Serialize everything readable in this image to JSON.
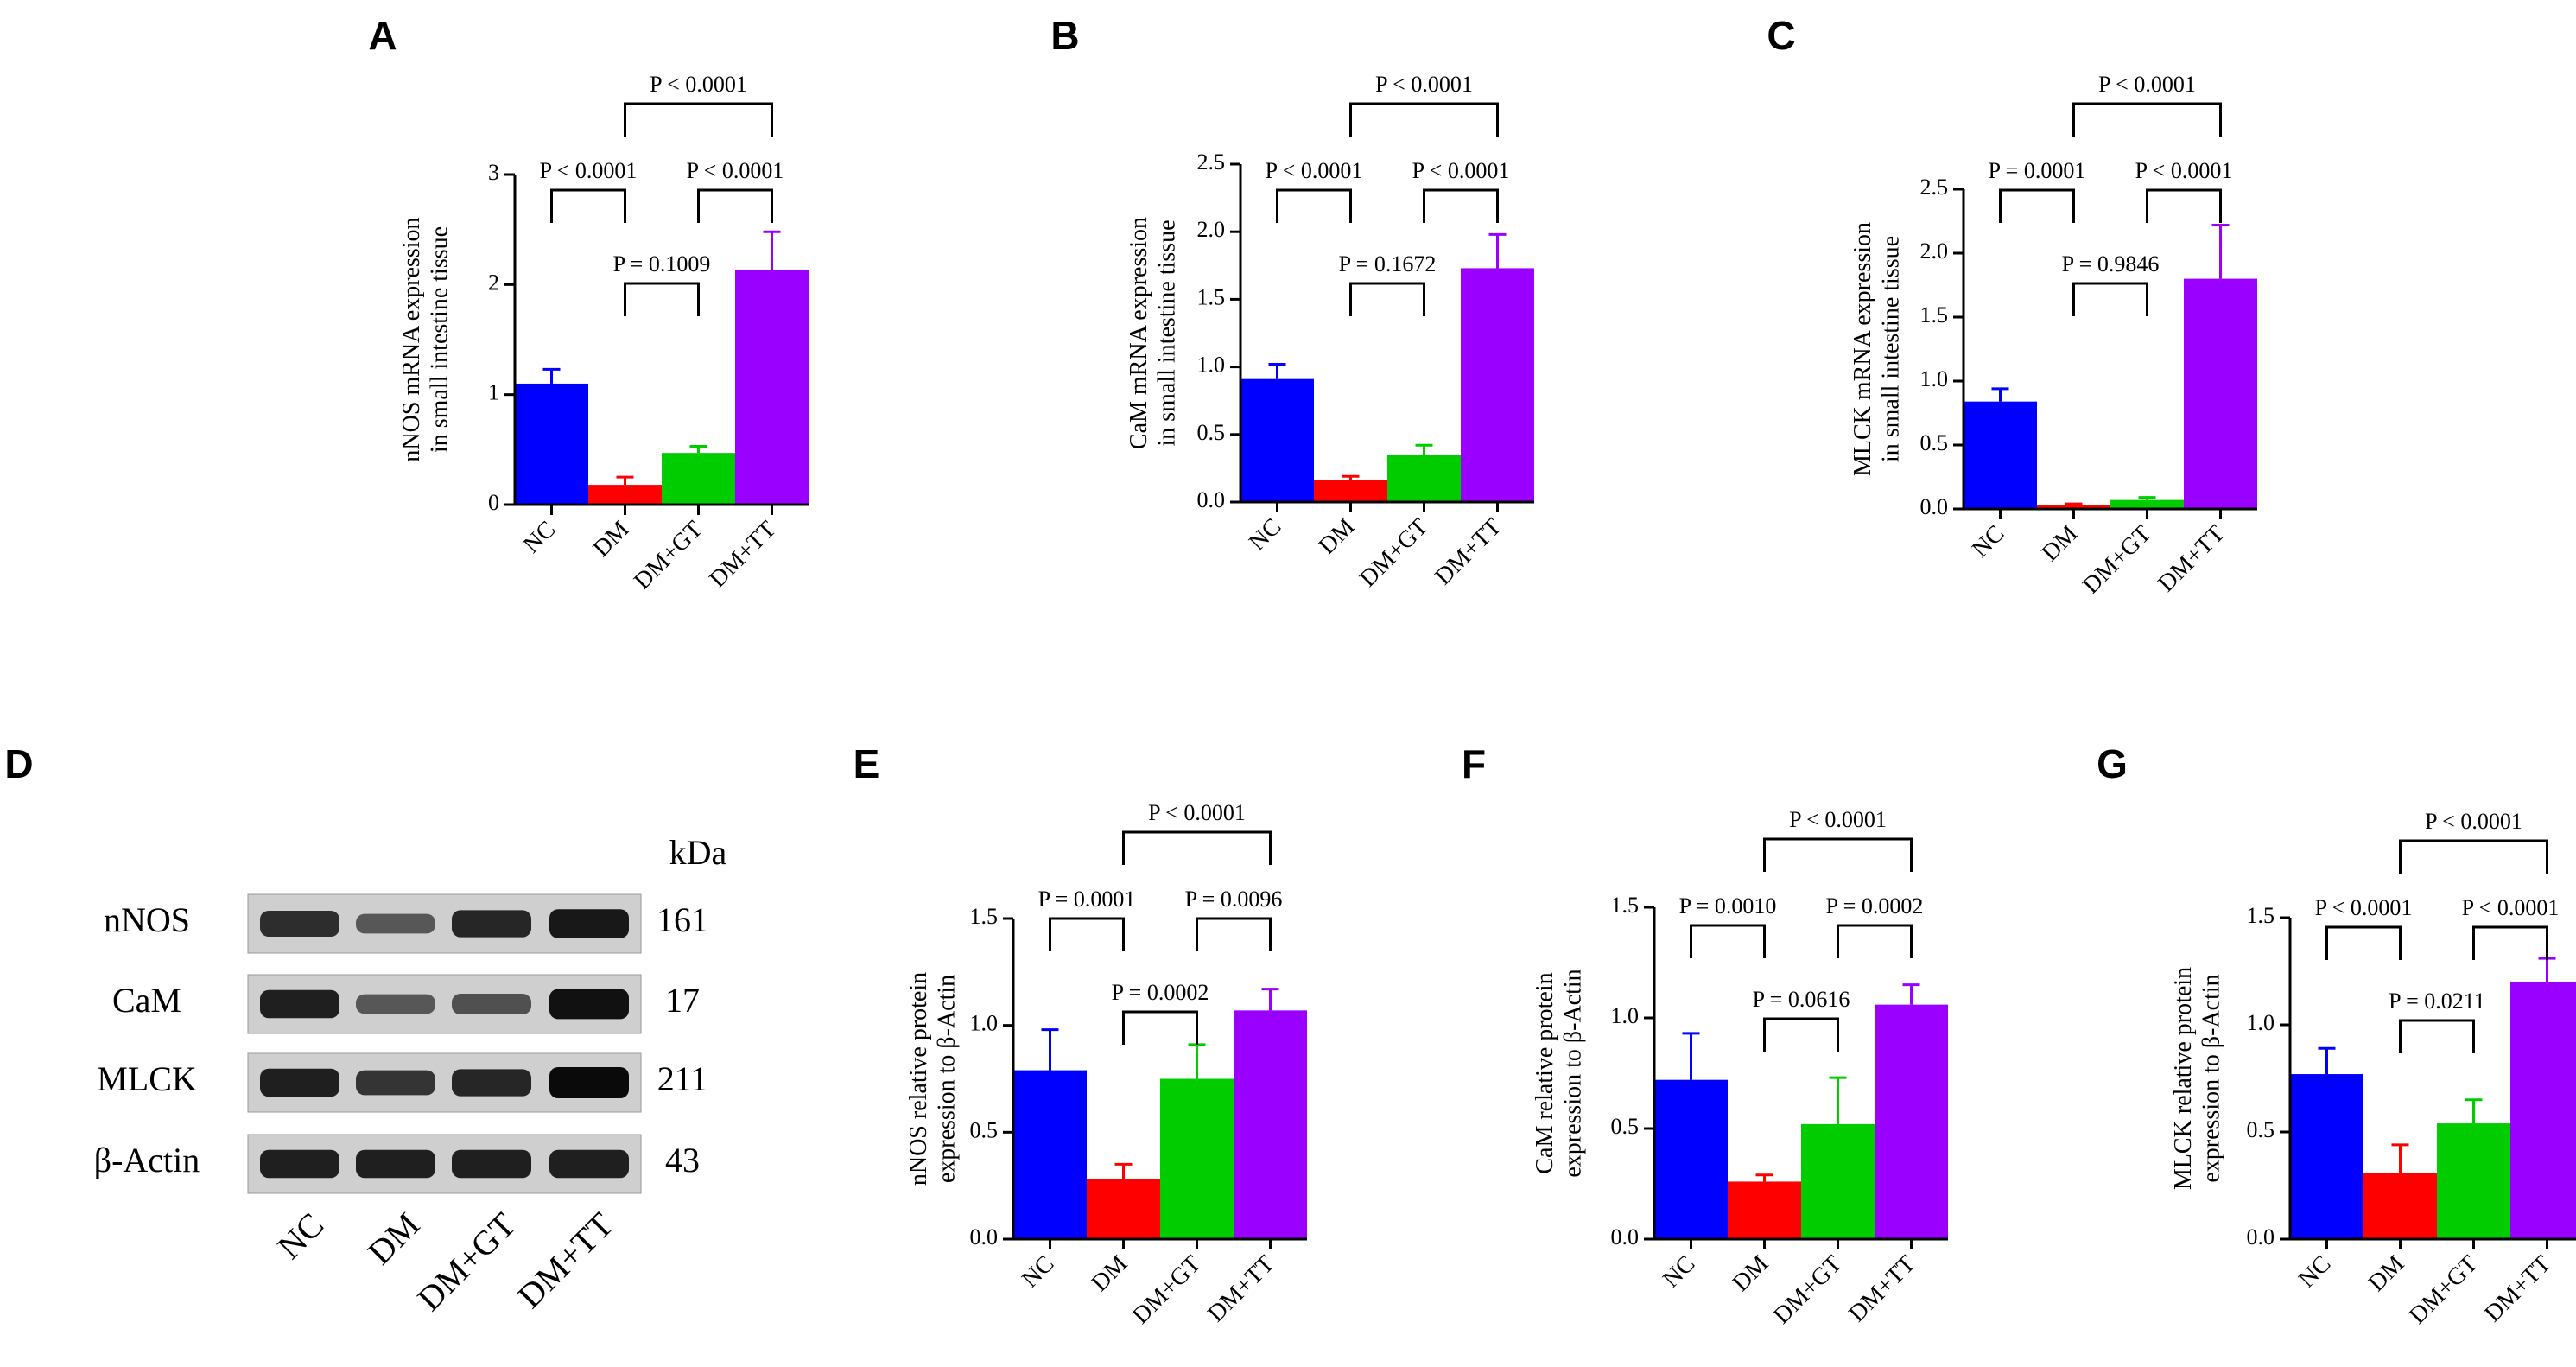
{
  "figure": {
    "colors": {
      "NC": "#0000ff",
      "DM": "#ff0000",
      "DM+GT": "#00cc00",
      "DM+TT": "#9900ff"
    }
  },
  "chart_data": [
    {
      "panel": "A",
      "type": "bar",
      "ylabel": [
        "nNOS mRNA expression",
        "in small intestine tissue"
      ],
      "categories": [
        "NC",
        "DM",
        "DM+GT",
        "DM+TT"
      ],
      "values": [
        1.1,
        0.18,
        0.47,
        2.13
      ],
      "errors": [
        0.13,
        0.07,
        0.06,
        0.35
      ],
      "ylim": [
        0,
        3
      ],
      "yticks": [
        0,
        1,
        2,
        3
      ],
      "ytick_labels": [
        "0",
        "1",
        "2",
        "3"
      ],
      "comparisons": [
        {
          "from": 1,
          "to": 3,
          "label": "P < 0.0001"
        },
        {
          "from": 0,
          "to": 1,
          "label": "P < 0.0001"
        },
        {
          "from": 2,
          "to": 3,
          "label": "P < 0.0001"
        },
        {
          "from": 1,
          "to": 2,
          "label": "P = 0.1009"
        }
      ]
    },
    {
      "panel": "B",
      "type": "bar",
      "ylabel": [
        "CaM mRNA expression",
        "in small intestine tissue"
      ],
      "categories": [
        "NC",
        "DM",
        "DM+GT",
        "DM+TT"
      ],
      "values": [
        0.91,
        0.16,
        0.35,
        1.73
      ],
      "errors": [
        0.11,
        0.03,
        0.07,
        0.25
      ],
      "ylim": [
        0,
        2.5
      ],
      "yticks": [
        0,
        0.5,
        1.0,
        1.5,
        2.0,
        2.5
      ],
      "ytick_labels": [
        "0.0",
        "0.5",
        "1.0",
        "1.5",
        "2.0",
        "2.5"
      ],
      "comparisons": [
        {
          "from": 1,
          "to": 3,
          "label": "P < 0.0001"
        },
        {
          "from": 0,
          "to": 1,
          "label": "P < 0.0001"
        },
        {
          "from": 2,
          "to": 3,
          "label": "P < 0.0001"
        },
        {
          "from": 1,
          "to": 2,
          "label": "P = 0.1672"
        }
      ]
    },
    {
      "panel": "C",
      "type": "bar",
      "ylabel": [
        "MLCK mRNA expression",
        "in small intestine tissue"
      ],
      "categories": [
        "NC",
        "DM",
        "DM+GT",
        "DM+TT"
      ],
      "values": [
        0.84,
        0.03,
        0.07,
        1.8
      ],
      "errors": [
        0.1,
        0.01,
        0.02,
        0.42
      ],
      "ylim": [
        0,
        2.5
      ],
      "yticks": [
        0,
        0.5,
        1.0,
        1.5,
        2.0,
        2.5
      ],
      "ytick_labels": [
        "0.0",
        "0.5",
        "1.0",
        "1.5",
        "2.0",
        "2.5"
      ],
      "comparisons": [
        {
          "from": 1,
          "to": 3,
          "label": "P < 0.0001"
        },
        {
          "from": 0,
          "to": 1,
          "label": "P = 0.0001"
        },
        {
          "from": 2,
          "to": 3,
          "label": "P < 0.0001"
        },
        {
          "from": 1,
          "to": 2,
          "label": "P = 0.9846"
        }
      ]
    },
    {
      "panel": "E",
      "type": "bar",
      "ylabel": [
        "nNOS relative protein",
        "expression to β-Actin"
      ],
      "categories": [
        "NC",
        "DM",
        "DM+GT",
        "DM+TT"
      ],
      "values": [
        0.79,
        0.28,
        0.75,
        1.07
      ],
      "errors": [
        0.19,
        0.07,
        0.16,
        0.1
      ],
      "ylim": [
        0,
        1.5
      ],
      "yticks": [
        0,
        0.5,
        1.0,
        1.5
      ],
      "ytick_labels": [
        "0.0",
        "0.5",
        "1.0",
        "1.5"
      ],
      "comparisons": [
        {
          "from": 1,
          "to": 3,
          "label": "P < 0.0001"
        },
        {
          "from": 0,
          "to": 1,
          "label": "P = 0.0001"
        },
        {
          "from": 2,
          "to": 3,
          "label": "P = 0.0096"
        },
        {
          "from": 1,
          "to": 2,
          "label": "P = 0.0002"
        }
      ]
    },
    {
      "panel": "F",
      "type": "bar",
      "ylabel": [
        "CaM relative protein",
        "expression to β-Actin"
      ],
      "categories": [
        "NC",
        "DM",
        "DM+GT",
        "DM+TT"
      ],
      "values": [
        0.72,
        0.26,
        0.52,
        1.06
      ],
      "errors": [
        0.21,
        0.03,
        0.21,
        0.09
      ],
      "ylim": [
        0,
        1.5
      ],
      "yticks": [
        0,
        0.5,
        1.0,
        1.5
      ],
      "ytick_labels": [
        "0.0",
        "0.5",
        "1.0",
        "1.5"
      ],
      "comparisons": [
        {
          "from": 1,
          "to": 3,
          "label": "P < 0.0001"
        },
        {
          "from": 0,
          "to": 1,
          "label": "P = 0.0010"
        },
        {
          "from": 2,
          "to": 3,
          "label": "P = 0.0002"
        },
        {
          "from": 1,
          "to": 2,
          "label": "P = 0.0616"
        }
      ]
    },
    {
      "panel": "G",
      "type": "bar",
      "ylabel": [
        "MLCK relative protein",
        "expression to β-Actin"
      ],
      "categories": [
        "NC",
        "DM",
        "DM+GT",
        "DM+TT"
      ],
      "values": [
        0.77,
        0.31,
        0.54,
        1.2
      ],
      "errors": [
        0.12,
        0.13,
        0.11,
        0.11
      ],
      "ylim": [
        0,
        1.5
      ],
      "yticks": [
        0,
        0.5,
        1.0,
        1.5
      ],
      "ytick_labels": [
        "0.0",
        "0.5",
        "1.0",
        "1.5"
      ],
      "comparisons": [
        {
          "from": 1,
          "to": 3,
          "label": "P < 0.0001"
        },
        {
          "from": 0,
          "to": 1,
          "label": "P < 0.0001"
        },
        {
          "from": 2,
          "to": 3,
          "label": "P < 0.0001"
        },
        {
          "from": 1,
          "to": 2,
          "label": "P = 0.0211"
        }
      ]
    }
  ],
  "western_blot": {
    "panel": "D",
    "kda_header": "kDa",
    "lanes": [
      "NC",
      "DM",
      "DM+GT",
      "DM+TT"
    ],
    "rows": [
      {
        "protein": "nNOS",
        "kda": "161",
        "intensity": [
          0.75,
          0.45,
          0.8,
          0.9
        ]
      },
      {
        "protein": "CaM",
        "kda": "17",
        "intensity": [
          0.85,
          0.45,
          0.5,
          0.95
        ]
      },
      {
        "protein": "MLCK",
        "kda": "211",
        "intensity": [
          0.85,
          0.7,
          0.8,
          1.0
        ]
      },
      {
        "protein": "β-Actin",
        "kda": "43",
        "intensity": [
          0.85,
          0.85,
          0.85,
          0.85
        ]
      }
    ]
  }
}
